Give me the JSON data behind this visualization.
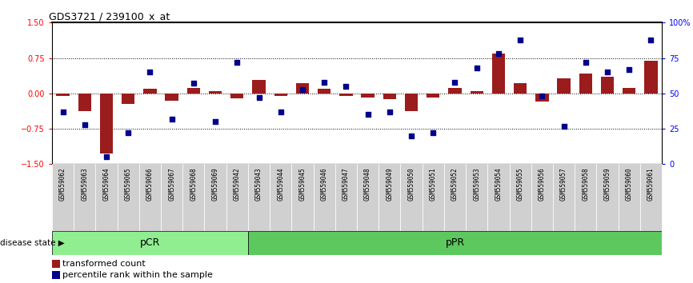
{
  "title": "GDS3721 / 239100_x_at",
  "samples": [
    "GSM559062",
    "GSM559063",
    "GSM559064",
    "GSM559065",
    "GSM559066",
    "GSM559067",
    "GSM559068",
    "GSM559069",
    "GSM559042",
    "GSM559043",
    "GSM559044",
    "GSM559045",
    "GSM559046",
    "GSM559047",
    "GSM559048",
    "GSM559049",
    "GSM559050",
    "GSM559051",
    "GSM559052",
    "GSM559053",
    "GSM559054",
    "GSM559055",
    "GSM559056",
    "GSM559057",
    "GSM559058",
    "GSM559059",
    "GSM559060",
    "GSM559061"
  ],
  "bar_values": [
    -0.05,
    -0.38,
    -1.28,
    -0.22,
    0.1,
    -0.15,
    0.12,
    0.05,
    -0.1,
    0.28,
    -0.05,
    0.22,
    0.1,
    -0.05,
    -0.08,
    -0.12,
    -0.38,
    -0.08,
    0.12,
    0.05,
    0.85,
    0.22,
    -0.18,
    0.32,
    0.42,
    0.35,
    0.12,
    0.7
  ],
  "dot_values": [
    37,
    28,
    5,
    22,
    65,
    32,
    57,
    30,
    72,
    47,
    37,
    53,
    58,
    55,
    35,
    37,
    20,
    22,
    58,
    68,
    78,
    88,
    48,
    27,
    72,
    65,
    67,
    88
  ],
  "pCR_count": 9,
  "pPR_count": 19,
  "bar_color": "#9B1C1C",
  "dot_color": "#00008B",
  "ylim": [
    -1.5,
    1.5
  ],
  "y2lim": [
    0,
    100
  ],
  "yticks": [
    -1.5,
    -0.75,
    0,
    0.75,
    1.5
  ],
  "y2ticks": [
    0,
    25,
    50,
    75,
    100
  ],
  "dotted_lines": [
    -0.75,
    0,
    0.75
  ],
  "pCR_color": "#90EE90",
  "pPR_color": "#5DC85D",
  "label_bar": "transformed count",
  "label_dot": "percentile rank within the sample",
  "tick_bg_color": "#D0D0D0",
  "spine_color": "#333333"
}
